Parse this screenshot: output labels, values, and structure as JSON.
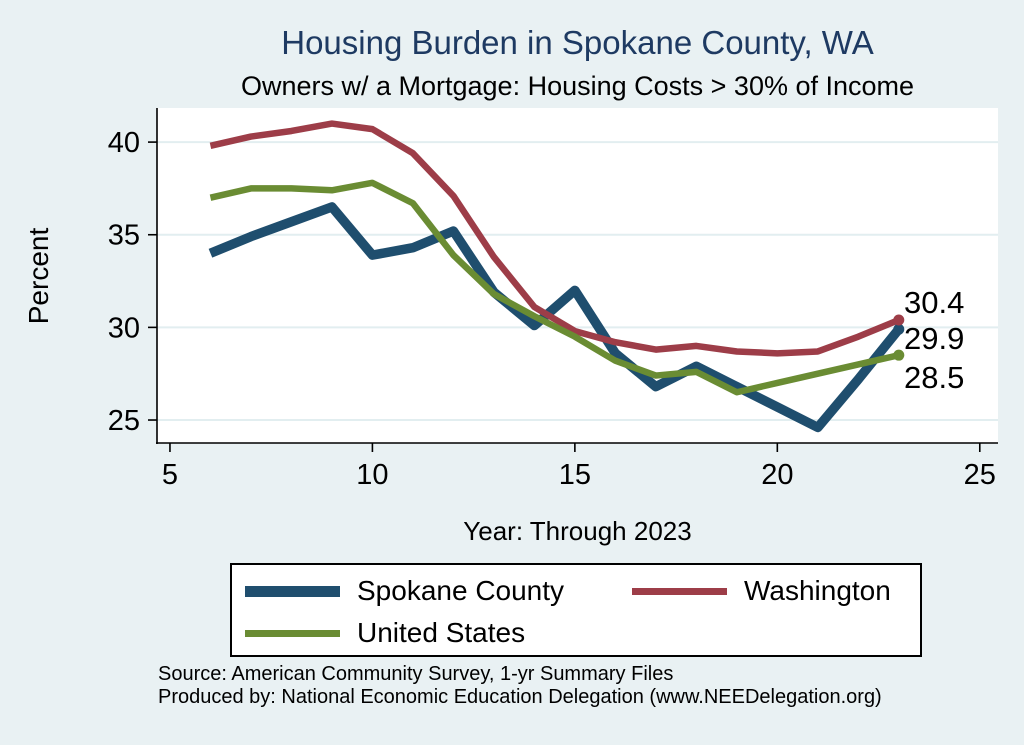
{
  "title": "Housing Burden in Spokane County, WA",
  "subtitle": "Owners w/ a Mortgage: Housing Costs > 30% of Income",
  "source_line1": "Source: American Community Survey, 1-yr Summary Files",
  "source_line2": "Produced by: National Economic Education Delegation (www.NEEDelegation.org)",
  "colors": {
    "page_background": "#e9f1f3",
    "plot_background": "#ffffff",
    "gridline": "#e2eef0",
    "axis": "#000000",
    "title_text": "#1e3a62",
    "navy": "#1f4e6e",
    "maroon": "#9d3d48",
    "olive": "#6a8c33"
  },
  "chart_data": {
    "type": "line",
    "title": "Housing Burden in Spokane County, WA",
    "subtitle": "Owners w/ a Mortgage: Housing Costs > 30% of Income",
    "xlabel": "Year: Through 2023",
    "ylabel": "Percent",
    "x": [
      6,
      7,
      8,
      9,
      10,
      11,
      12,
      13,
      14,
      15,
      16,
      17,
      18,
      19,
      20,
      21,
      22,
      23
    ],
    "series": [
      {
        "name": "Spokane County",
        "color": "#1f4e6e",
        "line_width": 9.5,
        "values": [
          34.0,
          34.9,
          35.7,
          36.5,
          33.9,
          34.3,
          35.2,
          31.9,
          30.1,
          32.0,
          28.6,
          26.8,
          27.9,
          26.8,
          25.7,
          24.6,
          27.2,
          29.9
        ],
        "end_label": "29.9"
      },
      {
        "name": "Washington",
        "color": "#9d3d48",
        "line_width": 6.5,
        "values": [
          39.8,
          40.3,
          40.6,
          41.0,
          40.7,
          39.4,
          37.1,
          33.8,
          31.1,
          29.8,
          29.2,
          28.8,
          29.0,
          28.7,
          28.6,
          28.7,
          29.5,
          30.4
        ],
        "end_label": "30.4"
      },
      {
        "name": "United States",
        "color": "#6a8c33",
        "line_width": 6.5,
        "values": [
          37.0,
          37.5,
          37.5,
          37.4,
          37.8,
          36.7,
          33.9,
          31.8,
          30.6,
          29.5,
          28.2,
          27.4,
          27.6,
          26.5,
          27.0,
          27.5,
          28.0,
          28.5
        ],
        "end_label": "28.5"
      }
    ],
    "x_ticks": [
      5,
      10,
      15,
      20,
      25
    ],
    "y_ticks": [
      25,
      30,
      35,
      40
    ],
    "xlim": [
      4.68,
      25.45
    ],
    "ylim": [
      23.76,
      41.84
    ],
    "grid": true,
    "legend_position": "bottom"
  }
}
